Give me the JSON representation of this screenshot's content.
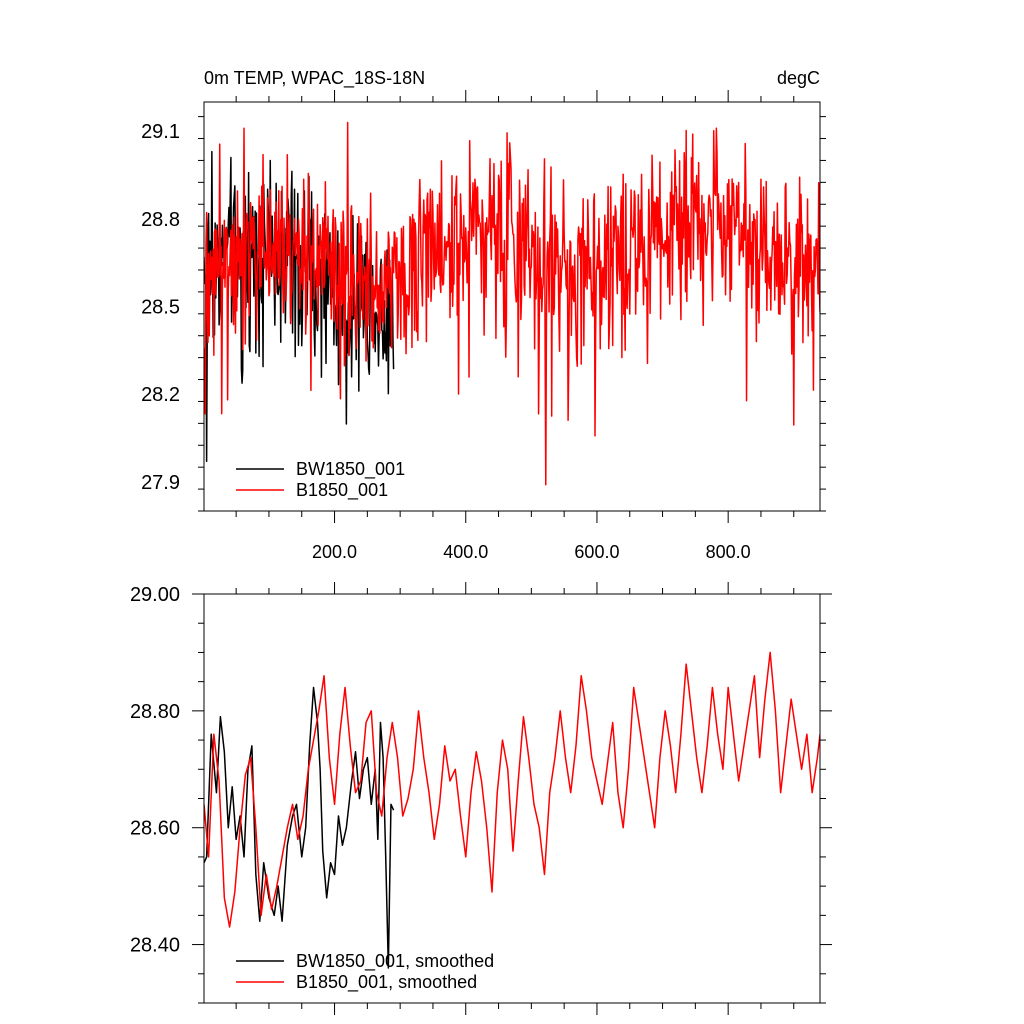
{
  "chart_data": [
    {
      "type": "line",
      "title": "0m TEMP, WPAC_18S-18N",
      "units_label": "degC",
      "xlim": [
        1,
        940
      ],
      "ylim": [
        27.8,
        29.2
      ],
      "x_ticks": [
        200,
        400,
        600,
        800
      ],
      "x_tick_labels": [
        "200.0",
        "400.0",
        "600.0",
        "800.0"
      ],
      "y_ticks": [
        27.9,
        28.2,
        28.5,
        28.8,
        29.1
      ],
      "y_tick_labels": [
        "27.9",
        "28.2",
        "28.5",
        "28.8",
        "29.1"
      ],
      "legend_position": "bottom-left",
      "series": [
        {
          "name": "BW1850_001",
          "color": "#000000",
          "x_start": 1,
          "x_end": 290,
          "min": 27.97,
          "max": 29.03,
          "approx_mean": 28.62,
          "min_at": 5,
          "max_at": 13
        },
        {
          "name": "B1850_001",
          "color": "#ff0000",
          "x_start": 1,
          "x_end": 940,
          "min": 27.89,
          "max": 29.13,
          "approx_mean": 28.7,
          "min_at": 522,
          "max_at": 220
        }
      ]
    },
    {
      "type": "line",
      "xlim": [
        1,
        940
      ],
      "ylim": [
        28.3,
        29.0
      ],
      "x_ticks": [
        200,
        400,
        600,
        800
      ],
      "x_tick_labels": [
        "",
        "",
        "",
        ""
      ],
      "y_ticks": [
        28.4,
        28.6,
        28.8,
        29.0
      ],
      "y_tick_labels": [
        "28.40",
        "28.60",
        "28.80",
        "29.00"
      ],
      "legend_position": "bottom-left",
      "series": [
        {
          "name": "BW1850_001, smoothed",
          "color": "#000000",
          "x": [
            1,
            5,
            12,
            20,
            26,
            32,
            38,
            44,
            50,
            56,
            62,
            68,
            74,
            80,
            86,
            92,
            100,
            108,
            114,
            120,
            128,
            136,
            142,
            150,
            156,
            162,
            168,
            174,
            178,
            182,
            188,
            194,
            200,
            206,
            212,
            218,
            226,
            232,
            238,
            244,
            250,
            256,
            262,
            266,
            270,
            274,
            278,
            282,
            286,
            290
          ],
          "y": [
            28.54,
            28.55,
            28.76,
            28.66,
            28.79,
            28.73,
            28.6,
            28.67,
            28.58,
            28.62,
            28.55,
            28.7,
            28.74,
            28.52,
            28.44,
            28.54,
            28.48,
            28.45,
            28.5,
            28.44,
            28.57,
            28.62,
            28.64,
            28.55,
            28.6,
            28.74,
            28.84,
            28.78,
            28.7,
            28.56,
            28.48,
            28.54,
            28.52,
            28.62,
            28.57,
            28.6,
            28.68,
            28.73,
            28.65,
            28.7,
            28.72,
            28.64,
            28.7,
            28.58,
            28.78,
            28.72,
            28.55,
            28.36,
            28.64,
            28.63
          ]
        },
        {
          "name": "B1850_001, smoothed",
          "color": "#ff0000",
          "x": [
            1,
            8,
            16,
            24,
            32,
            40,
            48,
            56,
            64,
            72,
            80,
            88,
            96,
            104,
            112,
            120,
            128,
            136,
            144,
            152,
            160,
            168,
            176,
            184,
            192,
            200,
            208,
            216,
            224,
            232,
            240,
            248,
            256,
            264,
            272,
            280,
            288,
            296,
            304,
            312,
            320,
            328,
            336,
            344,
            352,
            360,
            368,
            376,
            384,
            392,
            400,
            408,
            416,
            424,
            432,
            440,
            448,
            456,
            464,
            472,
            480,
            488,
            496,
            504,
            512,
            520,
            528,
            536,
            544,
            552,
            560,
            568,
            576,
            584,
            592,
            600,
            608,
            616,
            624,
            632,
            640,
            648,
            656,
            664,
            672,
            680,
            688,
            696,
            704,
            712,
            720,
            728,
            736,
            744,
            752,
            760,
            768,
            776,
            784,
            792,
            800,
            808,
            816,
            824,
            832,
            840,
            848,
            856,
            864,
            872,
            880,
            888,
            896,
            904,
            912,
            920,
            928,
            936,
            940
          ],
          "y": [
            28.64,
            28.55,
            28.76,
            28.68,
            28.48,
            28.43,
            28.49,
            28.6,
            28.69,
            28.72,
            28.6,
            28.45,
            28.52,
            28.46,
            28.5,
            28.55,
            28.6,
            28.64,
            28.58,
            28.62,
            28.7,
            28.75,
            28.8,
            28.86,
            28.72,
            28.64,
            28.76,
            28.84,
            28.74,
            28.66,
            28.68,
            28.78,
            28.8,
            28.66,
            28.62,
            28.72,
            28.78,
            28.72,
            28.62,
            28.65,
            28.7,
            28.8,
            28.72,
            28.66,
            28.58,
            28.64,
            28.74,
            28.68,
            28.7,
            28.62,
            28.55,
            28.66,
            28.73,
            28.68,
            28.6,
            28.49,
            28.66,
            28.75,
            28.7,
            28.56,
            28.68,
            28.79,
            28.72,
            28.64,
            28.6,
            28.52,
            28.66,
            28.72,
            28.8,
            28.72,
            28.66,
            28.74,
            28.86,
            28.8,
            28.72,
            28.68,
            28.64,
            28.71,
            28.78,
            28.66,
            28.6,
            28.7,
            28.84,
            28.78,
            28.72,
            28.66,
            28.6,
            28.72,
            28.8,
            28.74,
            28.66,
            28.76,
            28.88,
            28.8,
            28.72,
            28.66,
            28.74,
            28.84,
            28.76,
            28.7,
            28.84,
            28.76,
            28.68,
            28.74,
            28.8,
            28.86,
            28.72,
            28.82,
            28.9,
            28.8,
            28.66,
            28.74,
            28.82,
            28.76,
            28.7,
            28.76,
            28.66,
            28.72,
            28.76
          ]
        }
      ]
    }
  ]
}
